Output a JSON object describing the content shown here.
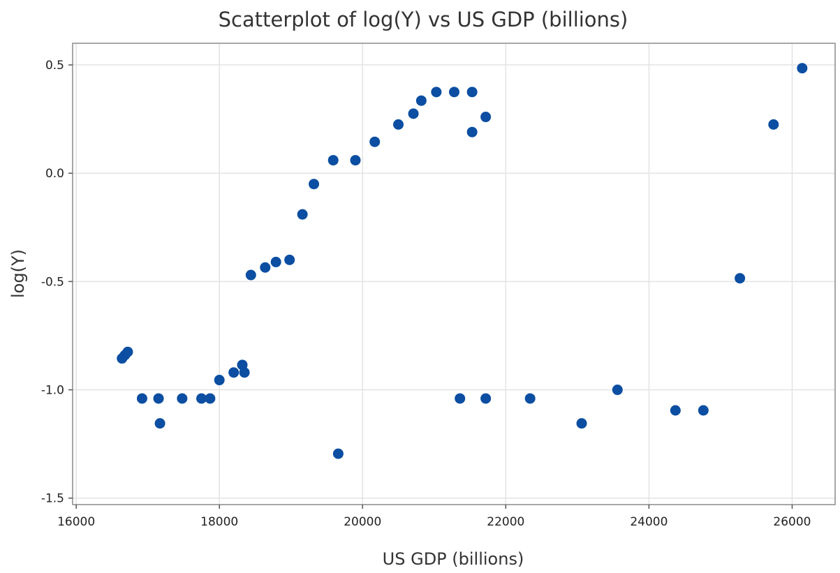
{
  "chart_data": {
    "type": "scatter",
    "title": "Scatterplot of log(Y) vs US GDP (billions)",
    "xlabel": "US GDP (billions)",
    "ylabel": "log(Y)",
    "xlim": [
      15950,
      26600
    ],
    "ylim": [
      -1.53,
      0.6
    ],
    "x_ticks": [
      16000,
      18000,
      20000,
      22000,
      24000,
      26000
    ],
    "x_tick_labels": [
      "16000",
      "18000",
      "20000",
      "22000",
      "24000",
      "26000"
    ],
    "y_ticks": [
      0.5,
      0.0,
      -0.5,
      -1.0,
      -1.5
    ],
    "y_tick_labels": [
      "0.5",
      "0.0",
      "-0.5",
      "-1.0",
      "-1.5"
    ],
    "grid": true,
    "marker_color": "#0b4ea2",
    "series": [
      {
        "points": [
          {
            "x": 16640,
            "y": -0.855
          },
          {
            "x": 16680,
            "y": -0.84
          },
          {
            "x": 16720,
            "y": -0.825
          },
          {
            "x": 16920,
            "y": -1.04
          },
          {
            "x": 17150,
            "y": -1.04
          },
          {
            "x": 17170,
            "y": -1.155
          },
          {
            "x": 17480,
            "y": -1.04
          },
          {
            "x": 17750,
            "y": -1.04
          },
          {
            "x": 17870,
            "y": -1.04
          },
          {
            "x": 18000,
            "y": -0.955
          },
          {
            "x": 18200,
            "y": -0.92
          },
          {
            "x": 18320,
            "y": -0.885
          },
          {
            "x": 18350,
            "y": -0.92
          },
          {
            "x": 18440,
            "y": -0.47
          },
          {
            "x": 18640,
            "y": -0.435
          },
          {
            "x": 18790,
            "y": -0.41
          },
          {
            "x": 18980,
            "y": -0.4
          },
          {
            "x": 19160,
            "y": -0.19
          },
          {
            "x": 19320,
            "y": -0.05
          },
          {
            "x": 19590,
            "y": 0.06
          },
          {
            "x": 19660,
            "y": -1.295
          },
          {
            "x": 19900,
            "y": 0.06
          },
          {
            "x": 20170,
            "y": 0.145
          },
          {
            "x": 20500,
            "y": 0.225
          },
          {
            "x": 20710,
            "y": 0.275
          },
          {
            "x": 20820,
            "y": 0.335
          },
          {
            "x": 21030,
            "y": 0.375
          },
          {
            "x": 21280,
            "y": 0.375
          },
          {
            "x": 21360,
            "y": -1.04
          },
          {
            "x": 21530,
            "y": 0.375
          },
          {
            "x": 21530,
            "y": 0.19
          },
          {
            "x": 21720,
            "y": 0.26
          },
          {
            "x": 21720,
            "y": -1.04
          },
          {
            "x": 22340,
            "y": -1.04
          },
          {
            "x": 23060,
            "y": -1.155
          },
          {
            "x": 23560,
            "y": -1.0
          },
          {
            "x": 24370,
            "y": -1.095
          },
          {
            "x": 24760,
            "y": -1.095
          },
          {
            "x": 25270,
            "y": -0.485
          },
          {
            "x": 25740,
            "y": 0.225
          },
          {
            "x": 26140,
            "y": 0.485
          }
        ]
      }
    ]
  }
}
